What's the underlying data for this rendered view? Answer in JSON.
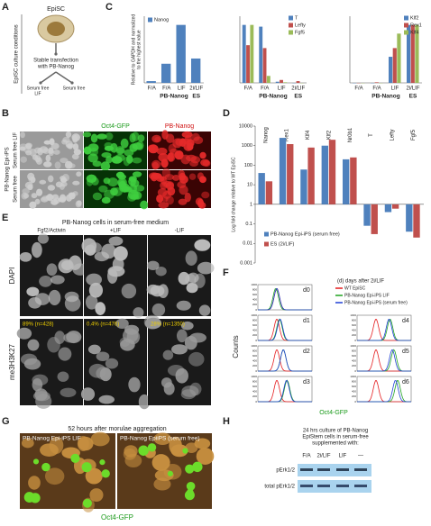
{
  "chart_data": [
    {
      "type": "bar",
      "ylabel": [
        "Relative to GAPDH and normalized",
        "to the highest value"
      ],
      "categories": [
        "F/A",
        "F/A",
        "LIF",
        "2i/LIF"
      ],
      "group_labels": [
        "PB-Nanog",
        "ES"
      ],
      "series": [
        {
          "name": "Nanog",
          "color": "#4f81bd",
          "values": [
            0.03,
            0.33,
            1.0,
            0.42
          ]
        }
      ],
      "ylim": [
        0,
        1.15
      ],
      "legend": "top-left"
    },
    {
      "type": "bar",
      "categories": [
        "F/A",
        "F/A",
        "LIF",
        "2i/LIF"
      ],
      "group_labels": [
        "PB-Nanog",
        "ES"
      ],
      "series": [
        {
          "name": "T",
          "color": "#4f81bd",
          "values": [
            1.0,
            0.97,
            0.02,
            0.0
          ]
        },
        {
          "name": "Lefty",
          "color": "#c0504d",
          "values": [
            0.65,
            0.6,
            0.05,
            0.03
          ]
        },
        {
          "name": "Fgf5",
          "color": "#9bbb59",
          "values": [
            1.0,
            0.12,
            0.01,
            0.0
          ]
        }
      ],
      "ylim": [
        0,
        1.15
      ],
      "legend": "top-right"
    },
    {
      "type": "bar",
      "categories": [
        "F/A",
        "F/A",
        "LIF",
        "2i/LIF"
      ],
      "group_labels": [
        "PB-Nanog",
        "ES"
      ],
      "series": [
        {
          "name": "Klf2",
          "color": "#4f81bd",
          "values": [
            0.0,
            0.0,
            0.45,
            1.0
          ]
        },
        {
          "name": "Rex1",
          "color": "#c0504d",
          "values": [
            0.0,
            0.01,
            0.6,
            1.0
          ]
        },
        {
          "name": "Klf4",
          "color": "#9bbb59",
          "values": [
            0.0,
            0.0,
            0.85,
            1.0
          ]
        }
      ],
      "ylim": [
        0,
        1.15
      ],
      "legend": "top-right"
    },
    {
      "type": "bar",
      "log_scale": true,
      "x_labels": "top",
      "ylabel": [
        "Log fold change relative to WT EpiSC"
      ],
      "categories": [
        "Nanog",
        "Rex1",
        "Klf4",
        "Klf2",
        "Nr0b1",
        "T",
        "Lefty",
        "Fgf5"
      ],
      "series": [
        {
          "name": "PB-Nanog Epi-iPS (serum free)",
          "color": "#4f81bd",
          "values": [
            40,
            2500,
            60,
            1000,
            200,
            0.08,
            0.4,
            0.04
          ]
        },
        {
          "name": "ES (2i/LIF)",
          "color": "#c0504d",
          "values": [
            15,
            1200,
            800,
            2000,
            250,
            0.03,
            0.6,
            0.02
          ]
        }
      ],
      "ylim": [
        0.001,
        10000
      ],
      "yticks": [
        10000,
        1000,
        100,
        10,
        1,
        0.1,
        0.01,
        0.001
      ],
      "legend": "bottom-left"
    }
  ],
  "panels": {
    "A": {
      "letter": "A",
      "culture": "EpiSC culture conditions",
      "cell": "EpiSC",
      "step": [
        "Stable transfection",
        "with PB-Nanog"
      ],
      "branch_left": [
        "Serum free",
        "LIF"
      ],
      "branch_right": [
        "Serum free"
      ]
    },
    "B": {
      "letter": "B",
      "channels": [
        "Oct4-GFP",
        "PB-Nanog"
      ],
      "row_group": "PB-Nanog Epi-iPS",
      "rows": [
        "Serum free LIF",
        "Serum free"
      ]
    },
    "C": {
      "letter": "C"
    },
    "D": {
      "letter": "D"
    },
    "E": {
      "letter": "E",
      "title": "PB-Nanog cells in serum-free medium",
      "columns": [
        "Fgf2/Activin",
        "+LIF",
        "-LIF"
      ],
      "rows": [
        "DAPI",
        "me3H3K27"
      ],
      "counts": [
        "89% (n=428)",
        "0.4% (n=476)",
        "28% (n=1350)"
      ]
    },
    "F": {
      "letter": "F",
      "title": "(d) days after 2i/LIF",
      "ylabel": "Counts",
      "xlabel": "Oct4-GFP",
      "legend": [
        {
          "label": "WT EpiSC",
          "color": "#e41a1c"
        },
        {
          "label": "PB-Nanog Epi-iPS LIF",
          "color": "#1fa31f"
        },
        {
          "label": "PB-Nanog Epi-iPS (serum free)",
          "color": "#1f3fd6"
        }
      ],
      "days": [
        "d0",
        "d1",
        "d2",
        "d3",
        "d4",
        "d5",
        "d6"
      ],
      "yticks": [
        "0",
        "200",
        "400",
        "600",
        "800",
        "1000"
      ]
    },
    "G": {
      "letter": "G",
      "title": "52 hours after morulae aggregation",
      "labels": [
        "PB-Nanog Epi-iPS LIF",
        "PB-Nanog EpiiPS (serum free)"
      ],
      "caption": "Oct4-GFP"
    },
    "H": {
      "letter": "H",
      "title": [
        "24 hrs culture of PB-Nanog",
        "EpiStem cells in serum-free",
        "supplemented with:"
      ],
      "lanes": [
        "F/A",
        "2i/LIF",
        "LIF",
        "—"
      ],
      "rows": [
        "pErk1/2",
        "total pErk1/2"
      ]
    }
  }
}
